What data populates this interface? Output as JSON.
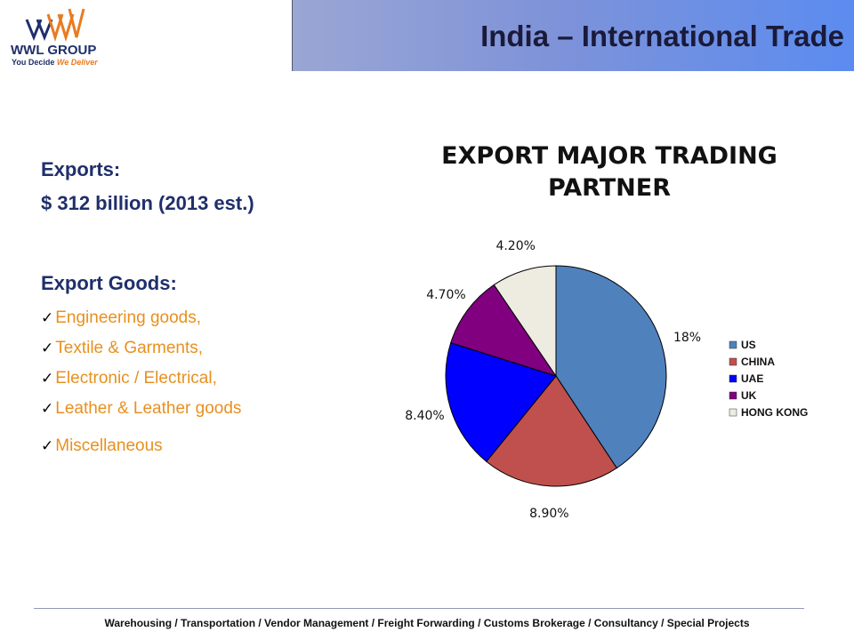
{
  "brand": {
    "name": "WWL GROUP",
    "tagline_a": "You Decide",
    "tagline_b": "We Deliver",
    "colors": {
      "navy": "#1f2f6b",
      "orange": "#e87b22"
    }
  },
  "slide": {
    "title": "India – International Trade",
    "exports_heading": "Exports:",
    "exports_value": "$ 312 billion (2013 est.)",
    "goods_heading": "Export Goods:",
    "goods": [
      "Engineering goods,",
      "Textile & Garments,",
      "Electronic / Electrical,",
      "Leather & Leather goods",
      "Miscellaneous"
    ],
    "check_glyph": "✓"
  },
  "chart_data": {
    "type": "pie",
    "title_line1": "EXPORT MAJOR TRADING",
    "title_line2": "PARTNER",
    "legend_position": "right",
    "slices": [
      {
        "name": "US",
        "value": 18,
        "label": "18%",
        "color": "#4f81bd"
      },
      {
        "name": "CHINA",
        "value": 8.9,
        "label": "8.90%",
        "color": "#c0504d"
      },
      {
        "name": "UAE",
        "value": 8.4,
        "label": "8.40%",
        "color": "#0000ff"
      },
      {
        "name": "UK",
        "value": 4.7,
        "label": "4.70%",
        "color": "#800080"
      },
      {
        "name": "HONG KONG",
        "value": 4.2,
        "label": "4.20%",
        "color": "#eeece1"
      }
    ]
  },
  "footer": {
    "text": "Warehousing / Transportation / Vendor Management / Freight Forwarding / Customs Brokerage / Consultancy / Special Projects"
  }
}
